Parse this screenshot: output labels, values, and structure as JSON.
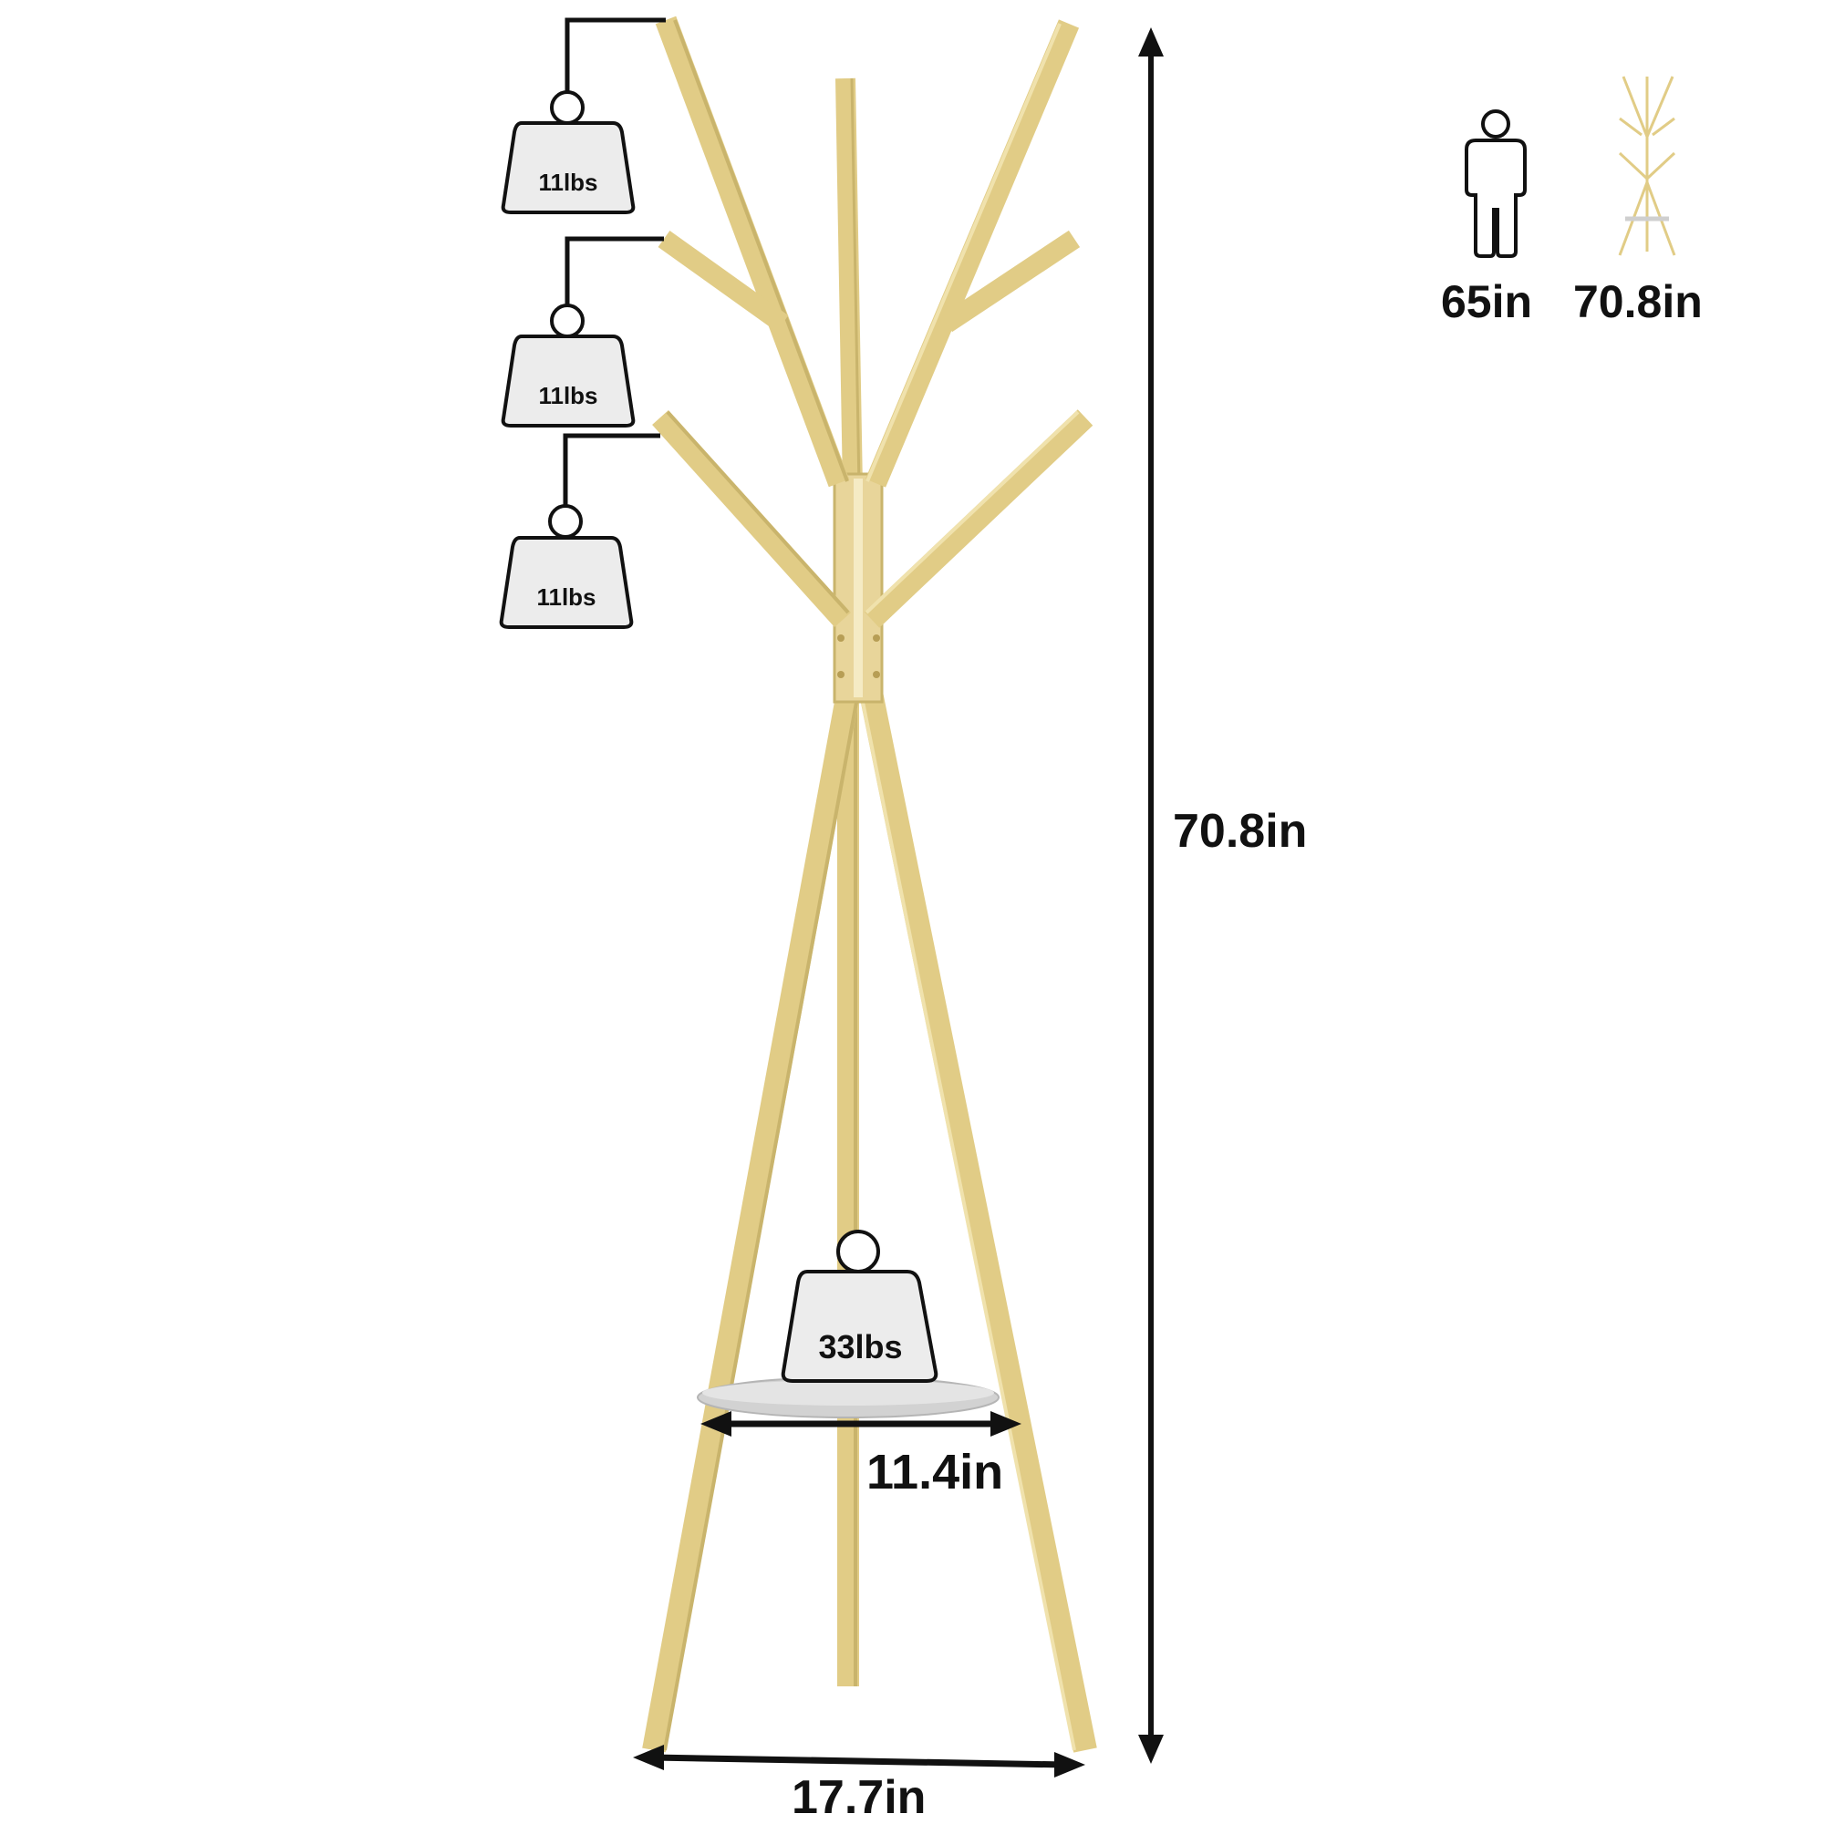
{
  "colors": {
    "gold": "#e1cc86",
    "gold_dark": "#c9b46c",
    "gold_light": "#f0e2ad",
    "shelf": "#d2d2d2",
    "ink": "#111111",
    "weight_fill": "#ececec"
  },
  "dimensions": {
    "height": "70.8in",
    "base_width": "17.7in",
    "shelf_width": "11.4in"
  },
  "weights": {
    "hook_1": "11lbs",
    "hook_2": "11lbs",
    "hook_3": "11lbs",
    "shelf": "33lbs"
  },
  "comparison": {
    "person_height": "65in",
    "rack_height": "70.8in",
    "person_icon": "person-icon",
    "rack_icon": "coat-rack-icon"
  }
}
